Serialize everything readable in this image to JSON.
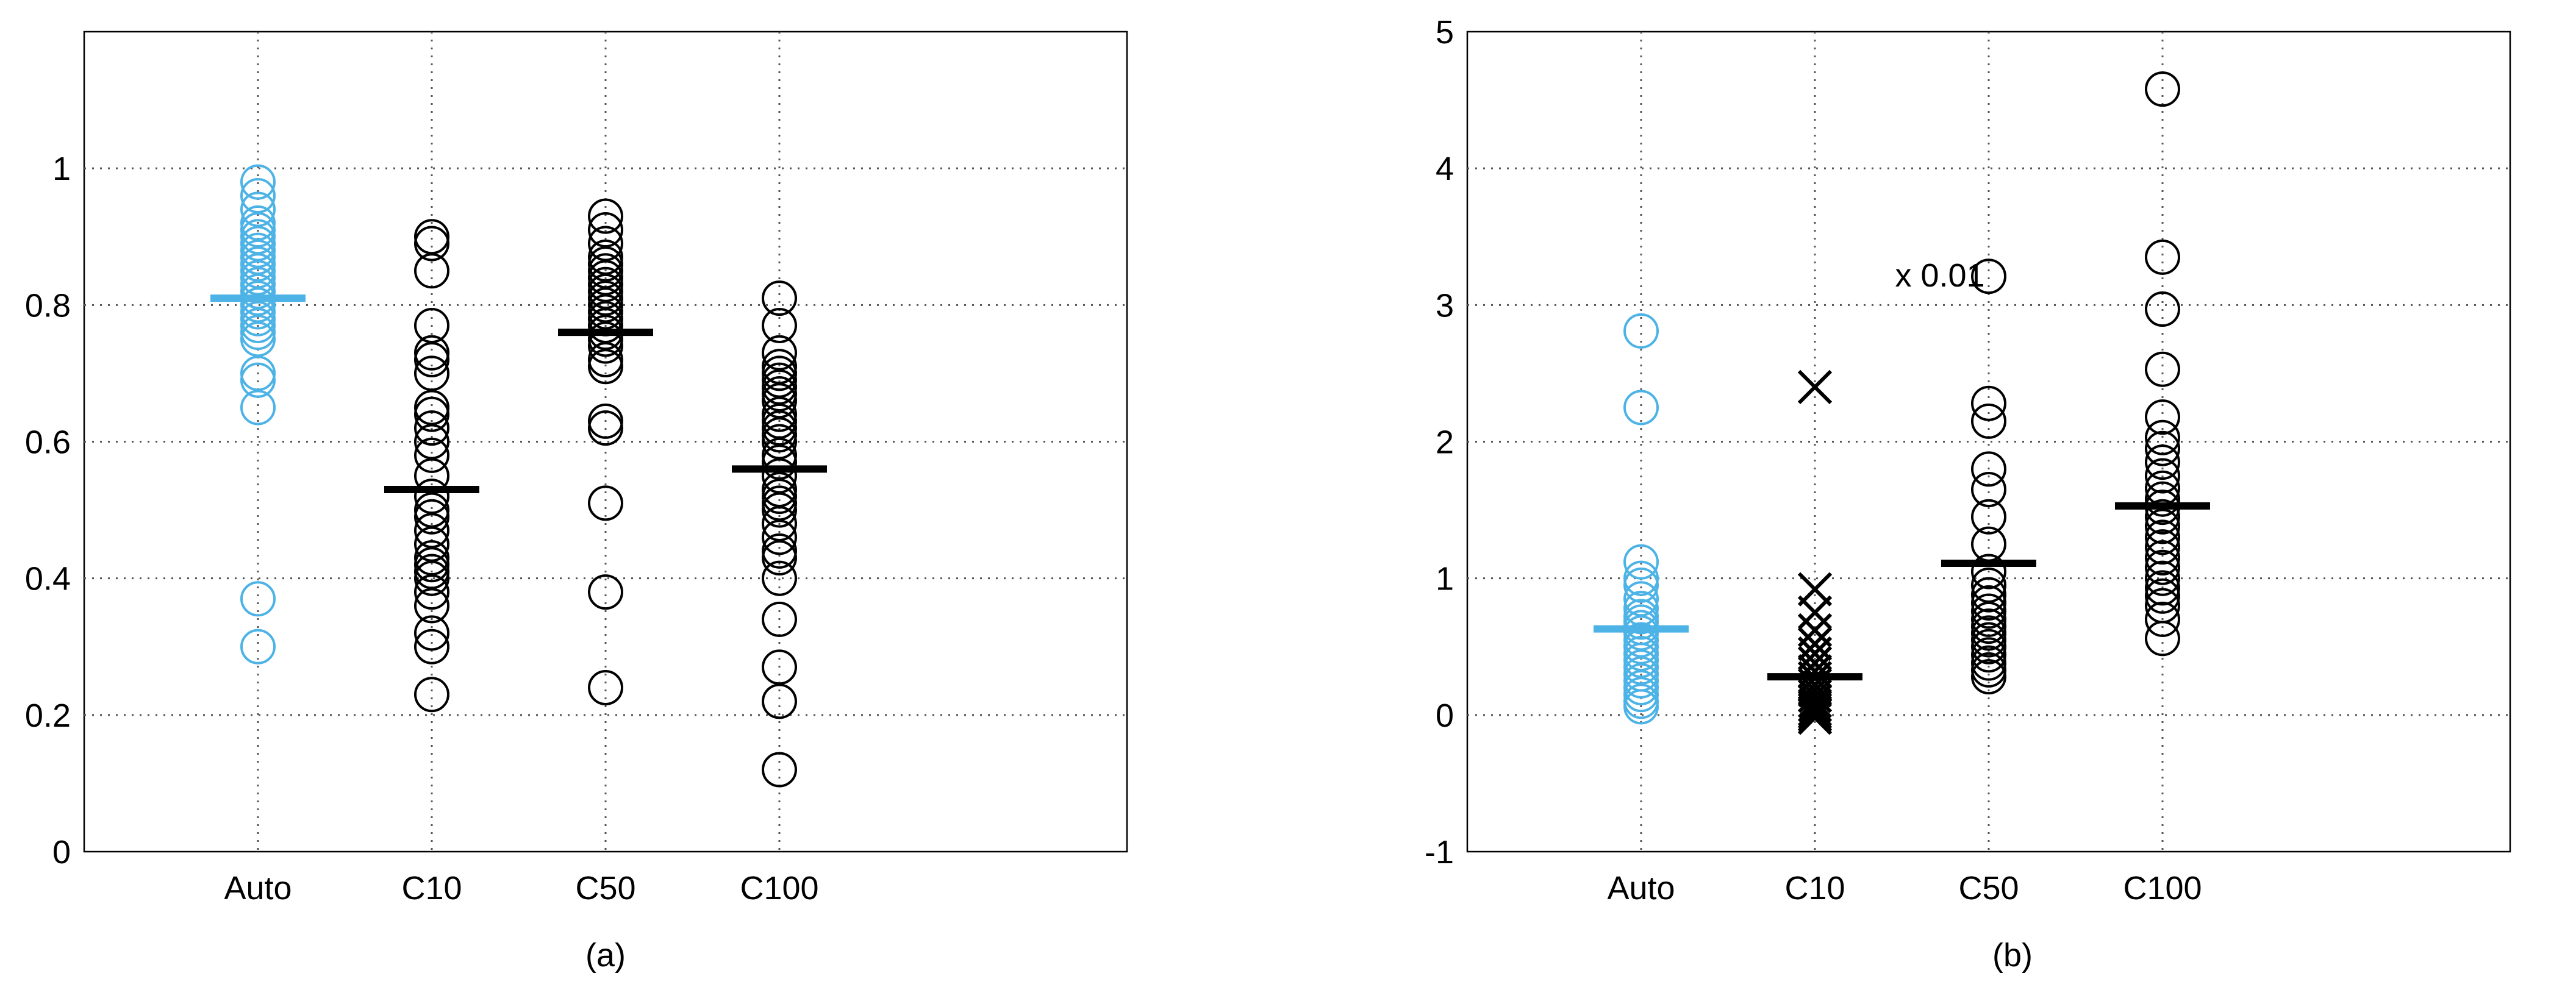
{
  "colors": {
    "auto": "#4DB3E6",
    "manual": "#000000",
    "grid": "#555555"
  },
  "chart_data": [
    {
      "type": "scatter",
      "caption": "(a)",
      "categories": [
        "Auto",
        "C10",
        "C50",
        "C100"
      ],
      "ylim": [
        0,
        1.2
      ],
      "yticks": [
        0,
        0.2,
        0.4,
        0.6,
        0.8,
        1
      ],
      "ytick_labels": [
        "0",
        "0.2",
        "0.4",
        "0.6",
        "0.8",
        "1"
      ],
      "xlim": [
        0,
        6
      ],
      "grid": true,
      "annotation": "",
      "series": [
        {
          "category": "Auto",
          "marker": "circle",
          "color": "auto",
          "mean": 0.81,
          "values": [
            0.98,
            0.96,
            0.94,
            0.92,
            0.91,
            0.9,
            0.89,
            0.88,
            0.87,
            0.86,
            0.85,
            0.84,
            0.83,
            0.82,
            0.81,
            0.8,
            0.79,
            0.78,
            0.77,
            0.76,
            0.75,
            0.7,
            0.69,
            0.65,
            0.37,
            0.3
          ]
        },
        {
          "category": "C10",
          "marker": "circle",
          "color": "manual",
          "mean": 0.53,
          "values": [
            0.9,
            0.89,
            0.85,
            0.77,
            0.73,
            0.72,
            0.7,
            0.65,
            0.64,
            0.62,
            0.6,
            0.58,
            0.55,
            0.52,
            0.5,
            0.49,
            0.47,
            0.45,
            0.43,
            0.42,
            0.41,
            0.4,
            0.38,
            0.36,
            0.32,
            0.3,
            0.23
          ]
        },
        {
          "category": "C50",
          "marker": "circle",
          "color": "manual",
          "mean": 0.76,
          "values": [
            0.93,
            0.91,
            0.89,
            0.87,
            0.86,
            0.85,
            0.84,
            0.83,
            0.82,
            0.81,
            0.8,
            0.79,
            0.78,
            0.77,
            0.76,
            0.75,
            0.74,
            0.72,
            0.71,
            0.63,
            0.62,
            0.51,
            0.38,
            0.24
          ]
        },
        {
          "category": "C100",
          "marker": "circle",
          "color": "manual",
          "mean": 0.56,
          "values": [
            0.81,
            0.77,
            0.73,
            0.71,
            0.7,
            0.69,
            0.68,
            0.67,
            0.66,
            0.64,
            0.63,
            0.62,
            0.61,
            0.6,
            0.58,
            0.57,
            0.55,
            0.53,
            0.52,
            0.51,
            0.5,
            0.48,
            0.46,
            0.44,
            0.43,
            0.4,
            0.34,
            0.27,
            0.22,
            0.12
          ]
        }
      ]
    },
    {
      "type": "scatter",
      "caption": "(b)",
      "categories": [
        "Auto",
        "C10",
        "C50",
        "C100"
      ],
      "ylim": [
        -1,
        5
      ],
      "yticks": [
        -1,
        0,
        1,
        2,
        3,
        4,
        5
      ],
      "ytick_labels": [
        "-1",
        "0",
        "1",
        "2",
        "3",
        "4",
        "5"
      ],
      "xlim": [
        0,
        6
      ],
      "grid": true,
      "annotation": "x 0.01",
      "series": [
        {
          "category": "Auto",
          "marker": "circle",
          "color": "auto",
          "mean": 0.63,
          "values": [
            2.81,
            2.25,
            1.12,
            1.0,
            0.95,
            0.85,
            0.78,
            0.72,
            0.68,
            0.64,
            0.6,
            0.55,
            0.5,
            0.45,
            0.4,
            0.35,
            0.3,
            0.25,
            0.2,
            0.15,
            0.1,
            0.06
          ]
        },
        {
          "category": "C10",
          "marker": "x",
          "color": "manual",
          "mean": 0.28,
          "values": [
            2.4,
            0.92,
            0.75,
            0.62,
            0.52,
            0.45,
            0.38,
            0.32,
            0.27,
            0.22,
            0.18,
            0.14,
            0.1,
            0.07,
            0.04,
            0.02,
            0.0,
            -0.02
          ]
        },
        {
          "category": "C50",
          "marker": "circle",
          "color": "manual",
          "mean": 1.11,
          "values": [
            3.21,
            2.28,
            2.15,
            1.8,
            1.65,
            1.45,
            1.25,
            1.05,
            0.95,
            0.88,
            0.82,
            0.76,
            0.7,
            0.65,
            0.6,
            0.55,
            0.5,
            0.44,
            0.38,
            0.33,
            0.28
          ]
        },
        {
          "category": "C100",
          "marker": "circle",
          "color": "manual",
          "mean": 1.53,
          "values": [
            4.58,
            3.35,
            2.97,
            2.53,
            2.18,
            2.03,
            1.95,
            1.85,
            1.75,
            1.66,
            1.58,
            1.52,
            1.45,
            1.38,
            1.3,
            1.23,
            1.15,
            1.08,
            1.0,
            0.93,
            0.87,
            0.8,
            0.7,
            0.56
          ]
        }
      ]
    }
  ]
}
